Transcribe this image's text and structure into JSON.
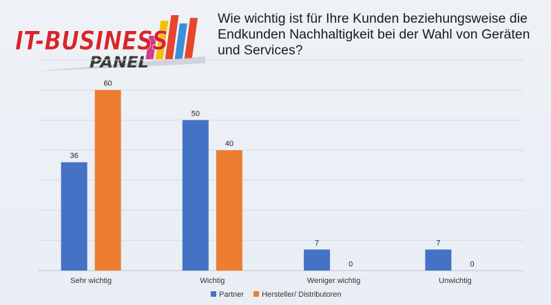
{
  "logo": {
    "brand": "IT-BUSINESS",
    "sub": "PANEL"
  },
  "chart_data": {
    "type": "bar",
    "title": "Wie wichtig ist für Ihre Kunden beziehungsweise die Endkunden Nachhaltigkeit bei der Wahl von Geräten und Services?",
    "categories": [
      "Sehr wichtig",
      "Wichtig",
      "Weniger wichtig",
      "Unwichtig"
    ],
    "series": [
      {
        "name": "Partner",
        "values": [
          36,
          50,
          7,
          7
        ],
        "color": "#4472c4"
      },
      {
        "name": "Hersteller/ Distributoren",
        "values": [
          60,
          40,
          0,
          0
        ],
        "color": "#ed7d31"
      }
    ],
    "ylim": [
      0,
      70
    ],
    "grid": true,
    "legend_position": "bottom"
  }
}
